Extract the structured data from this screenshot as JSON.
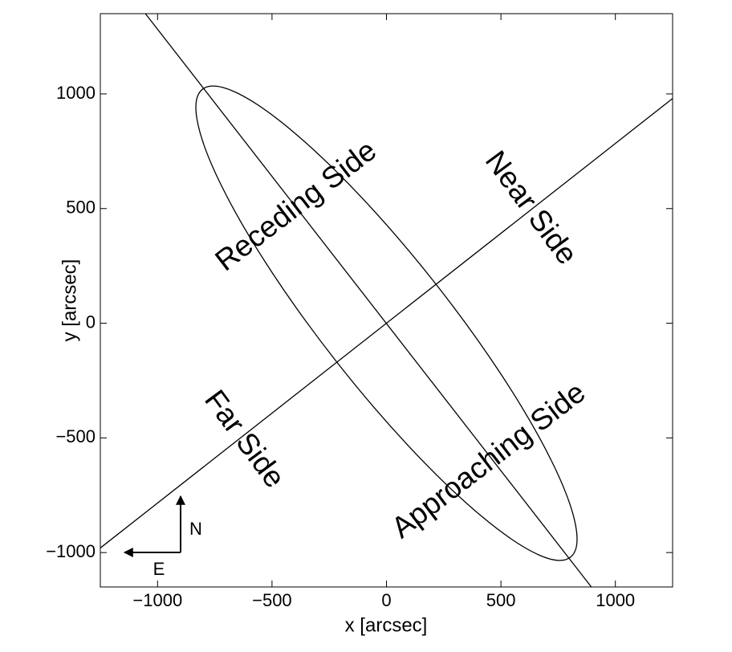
{
  "chart_data": {
    "type": "line",
    "xlabel": "x [arcsec]",
    "ylabel": "y [arcsec]",
    "xlim": [
      -1250,
      1250
    ],
    "ylim": [
      -1150,
      1350
    ],
    "xticks": [
      {
        "value": -1000,
        "label": "−1000"
      },
      {
        "value": -500,
        "label": "−500"
      },
      0,
      500,
      1000
    ],
    "yticks": [
      {
        "value": -1000,
        "label": "−1000"
      },
      {
        "value": -500,
        "label": "−500"
      },
      0,
      500,
      1000
    ],
    "color": "#000000",
    "series": [
      {
        "x": [
          -1053,
          895
        ],
        "values": [
          1350,
          -1150
        ]
      },
      {
        "x": [
          -1250,
          1250
        ],
        "values": [
          -980,
          980
        ]
      }
    ],
    "ellipse": {
      "center": [
        0,
        0
      ],
      "semi_major": 1300,
      "semi_minor": 275,
      "angle": 128.2
    },
    "annotations": [
      "Receding Side",
      "Near Side",
      "Far Side",
      "Approaching Side"
    ],
    "compass": {
      "north": "N",
      "east": "E"
    }
  }
}
